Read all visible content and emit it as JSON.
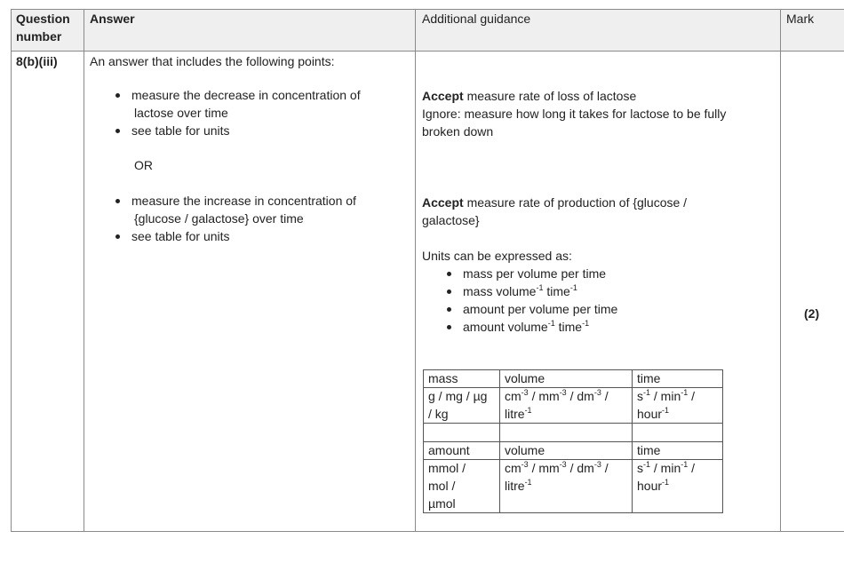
{
  "header": {
    "question": [
      "Question",
      "number"
    ],
    "answer": "Answer",
    "guidance": "Additional guidance",
    "mark": "Mark"
  },
  "row": {
    "question": "8(b)(iii)",
    "answer": {
      "intro": "An answer that includes the following points:",
      "bullets1": [
        [
          "measure the decrease in concentration of",
          "lactose over time"
        ],
        [
          "see table for units"
        ]
      ],
      "or": "OR",
      "bullets2": [
        [
          "measure the increase in concentration of",
          "{glucose / galactose} over time"
        ],
        [
          "see table for units"
        ]
      ]
    },
    "guidance": {
      "accept1_bold": "Accept",
      "accept1": " measure rate of loss of lactose",
      "ignore": [
        "Ignore: measure how long it takes for lactose to be fully",
        "broken down"
      ],
      "accept2_bold": "Accept",
      "accept2": [
        " measure rate of production of {glucose /",
        "galactose}"
      ],
      "units_intro": "Units can be expressed as:",
      "units": [
        [
          {
            "t": "mass per volume per time"
          }
        ],
        [
          {
            "t": "mass volume"
          },
          {
            "s": "-1"
          },
          {
            "t": " time"
          },
          {
            "s": "-1"
          }
        ],
        [
          {
            "t": "amount per volume per time"
          }
        ],
        [
          {
            "t": "amount volume"
          },
          {
            "s": "-1"
          },
          {
            "t": " time"
          },
          {
            "s": "-1"
          }
        ]
      ],
      "table": [
        [
          [
            [
              {
                "t": "mass"
              }
            ]
          ],
          [
            [
              {
                "t": "volume"
              }
            ]
          ],
          [
            [
              {
                "t": "time"
              }
            ]
          ]
        ],
        [
          [
            [
              {
                "t": "g / mg / µg"
              }
            ],
            [
              {
                "t": "/ kg"
              }
            ]
          ],
          [
            [
              {
                "t": "cm"
              },
              {
                "s": "-3"
              },
              {
                "t": " / mm"
              },
              {
                "s": "-3"
              },
              {
                "t": " / dm"
              },
              {
                "s": "-3"
              },
              {
                "t": " /"
              }
            ],
            [
              {
                "t": "litre"
              },
              {
                "s": "-1"
              }
            ]
          ],
          [
            [
              {
                "t": "s"
              },
              {
                "s": "-1"
              },
              {
                "t": " / min"
              },
              {
                "s": "-1"
              },
              {
                "t": " /"
              }
            ],
            [
              {
                "t": "hour"
              },
              {
                "s": "-1"
              }
            ]
          ]
        ],
        [
          [],
          [],
          []
        ],
        [
          [
            [
              {
                "t": "amount"
              }
            ]
          ],
          [
            [
              {
                "t": "volume"
              }
            ]
          ],
          [
            [
              {
                "t": "time"
              }
            ]
          ]
        ],
        [
          [
            [
              {
                "t": "mmol /"
              }
            ],
            [
              {
                "t": "mol /"
              }
            ],
            [
              {
                "t": "µmol"
              }
            ]
          ],
          [
            [
              {
                "t": "cm"
              },
              {
                "s": "-3"
              },
              {
                "t": " / mm"
              },
              {
                "s": "-3"
              },
              {
                "t": " / dm"
              },
              {
                "s": "-3"
              },
              {
                "t": " /"
              }
            ],
            [
              {
                "t": "litre"
              },
              {
                "s": "-1"
              }
            ]
          ],
          [
            [
              {
                "t": "s"
              },
              {
                "s": "-1"
              },
              {
                "t": " / min"
              },
              {
                "s": "-1"
              },
              {
                "t": " /"
              }
            ],
            [
              {
                "t": "hour"
              },
              {
                "s": "-1"
              }
            ]
          ]
        ]
      ]
    },
    "mark": "(2)"
  }
}
